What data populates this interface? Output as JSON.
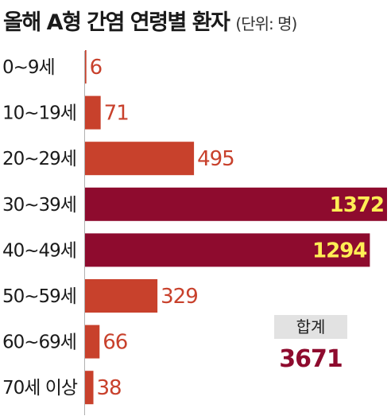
{
  "title": "올해 A형 간염 연령별 환자",
  "subtitle": "(단위: 명)",
  "total": {
    "label": "합계",
    "value": "3671"
  },
  "colors": {
    "normal_bar": "#c8412c",
    "highlight_bar": "#8e0b2e",
    "highlight_text": "#ffee55",
    "value_text": "#c8412c"
  },
  "chart_data": {
    "type": "bar",
    "orientation": "horizontal",
    "categories": [
      "0~9세",
      "10~19세",
      "20~29세",
      "30~39세",
      "40~49세",
      "50~59세",
      "60~69세",
      "70세 이상"
    ],
    "values": [
      6,
      71,
      495,
      1372,
      1294,
      329,
      66,
      38
    ],
    "highlighted": [
      false,
      false,
      false,
      true,
      true,
      false,
      false,
      false
    ],
    "xlim": [
      0,
      1372
    ],
    "grid": false
  }
}
